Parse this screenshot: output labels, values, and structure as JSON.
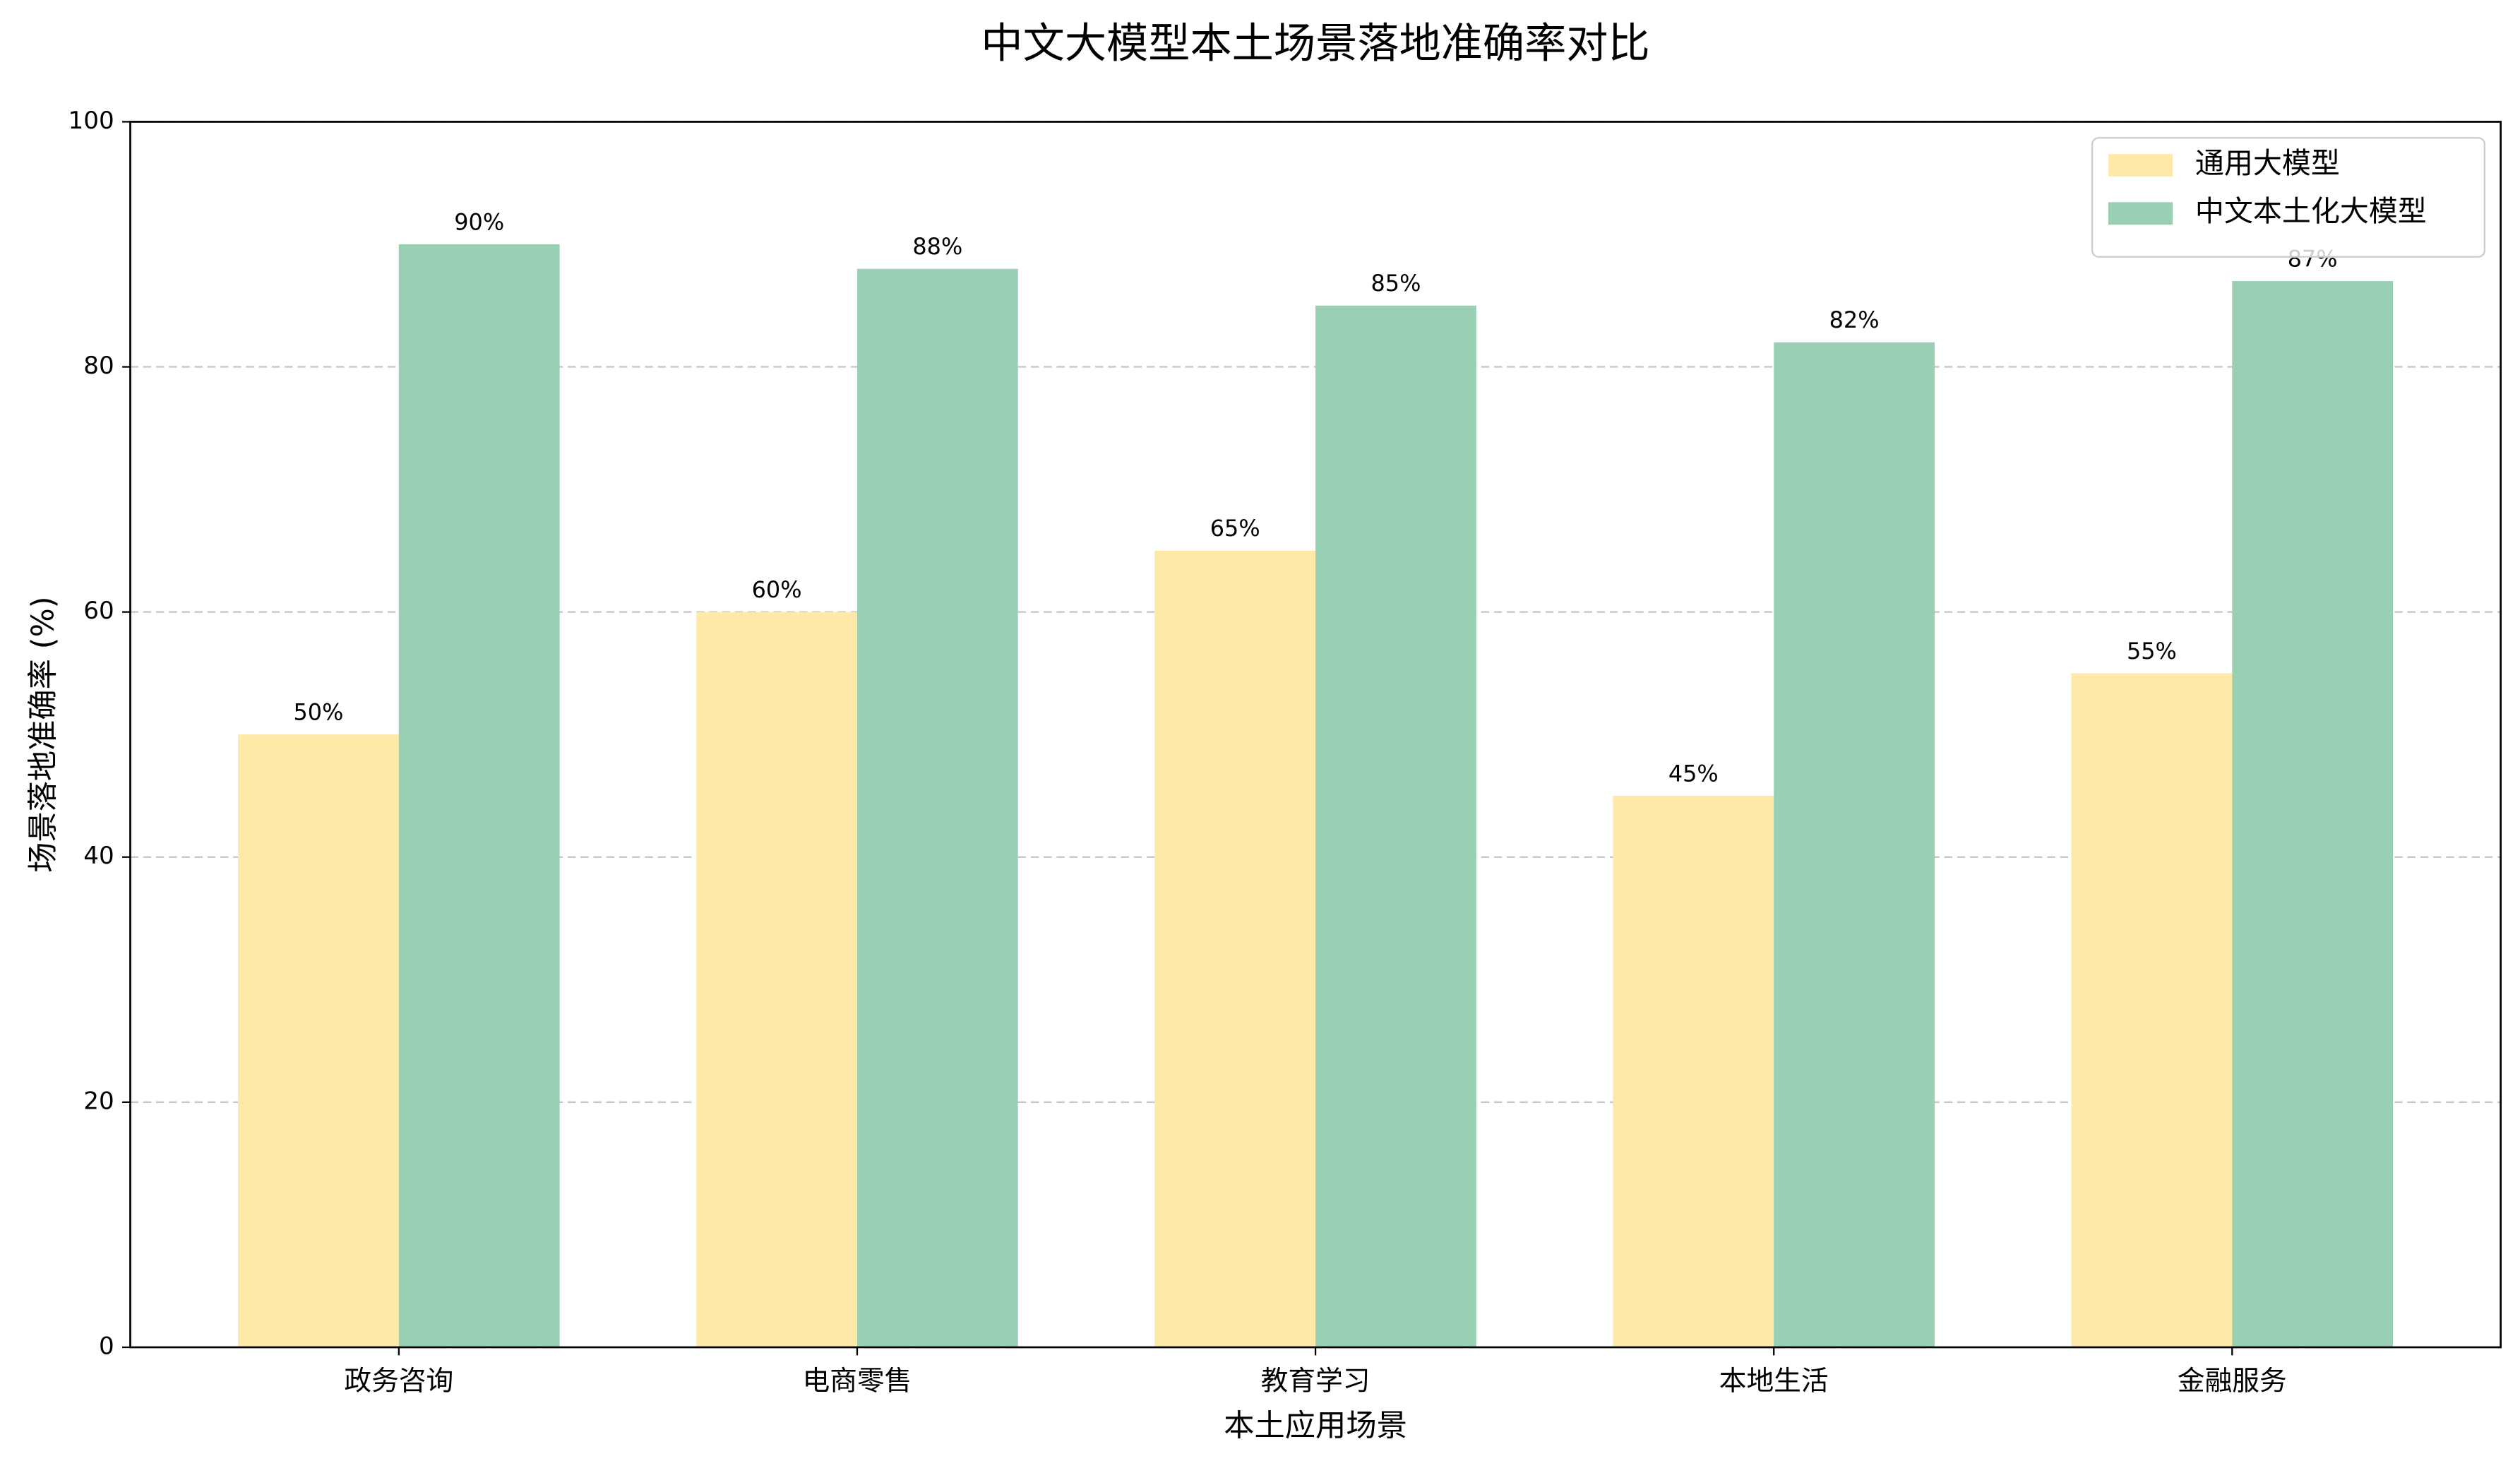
{
  "chart_data": {
    "type": "bar",
    "title": "中文大模型本土场景落地准确率对比",
    "x_label": "本土应用场景",
    "y_label": "场景落地准确率 (%)",
    "categories": [
      "政务咨询",
      "电商零售",
      "教育学习",
      "本地生活",
      "金融服务"
    ],
    "series": [
      {
        "name": "通用大模型",
        "color": "#fee9a8",
        "values": [
          50,
          60,
          65,
          45,
          55
        ],
        "value_labels": [
          "50%",
          "60%",
          "65%",
          "45%",
          "55%"
        ]
      },
      {
        "name": "中文本土化大模型",
        "color": "#99cfb2",
        "values": [
          90,
          88,
          85,
          82,
          87
        ],
        "value_labels": [
          "90%",
          "88%",
          "85%",
          "82%",
          "87%"
        ]
      }
    ],
    "ylim": [
      0,
      100
    ],
    "yticks": [
      0,
      20,
      40,
      60,
      80,
      100
    ],
    "grid": true,
    "legend": "upper right"
  }
}
